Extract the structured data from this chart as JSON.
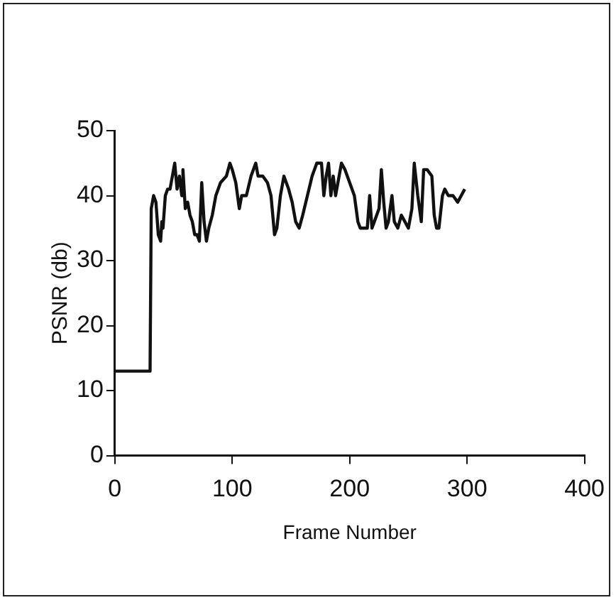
{
  "chart_data": {
    "type": "line",
    "xlabel": "Frame Number",
    "ylabel": "PSNR (db)",
    "xlim": [
      0,
      400
    ],
    "xticks": [
      0,
      100,
      200,
      300,
      400
    ],
    "ylim": [
      0,
      50
    ],
    "yticks": [
      0,
      10,
      20,
      30,
      40,
      50
    ],
    "grid": false,
    "legend": false,
    "marker": "none",
    "line_style": "solid",
    "series": [
      {
        "color": "#111111",
        "x": [
          0,
          30,
          31,
          33,
          35,
          37,
          39,
          40,
          41,
          43,
          45,
          47,
          49,
          51,
          53,
          55,
          57,
          58,
          60,
          62,
          64,
          66,
          68,
          70,
          72,
          74,
          76,
          78,
          80,
          83,
          86,
          90,
          95,
          98,
          100,
          103,
          106,
          108,
          112,
          116,
          120,
          122,
          126,
          130,
          133,
          136,
          138,
          141,
          144,
          148,
          151,
          154,
          157,
          160,
          164,
          168,
          172,
          176,
          178,
          180,
          182,
          184,
          186,
          188,
          190,
          193,
          196,
          200,
          204,
          207,
          209,
          213,
          215,
          217,
          219,
          221,
          225,
          227,
          229,
          231,
          233,
          236,
          238,
          241,
          244,
          247,
          250,
          253,
          255,
          258,
          261,
          263,
          266,
          270,
          272,
          274,
          276,
          279,
          281,
          284,
          288,
          292,
          295,
          298
        ],
        "values": [
          13,
          13,
          38,
          40,
          39,
          34,
          33,
          36,
          35,
          40,
          41,
          41,
          43,
          45,
          41,
          43,
          40,
          44,
          38,
          39,
          37,
          36,
          34,
          34,
          33,
          42,
          36,
          33,
          35,
          37,
          40,
          42,
          43,
          45,
          44,
          42,
          38,
          40,
          40,
          43,
          45,
          43,
          43,
          42,
          40,
          34,
          35,
          40,
          43,
          41,
          39,
          36,
          35,
          37,
          40,
          43,
          45,
          45,
          40,
          43,
          45,
          40,
          43,
          40,
          42,
          45,
          44,
          42,
          40,
          36,
          35,
          35,
          35,
          40,
          35,
          36,
          38,
          44,
          39,
          35,
          36,
          40,
          36,
          35,
          37,
          36,
          35,
          38,
          45,
          40,
          36,
          44,
          44,
          43,
          37,
          35,
          35,
          40,
          41,
          40,
          40,
          39,
          40,
          41
        ]
      }
    ]
  }
}
